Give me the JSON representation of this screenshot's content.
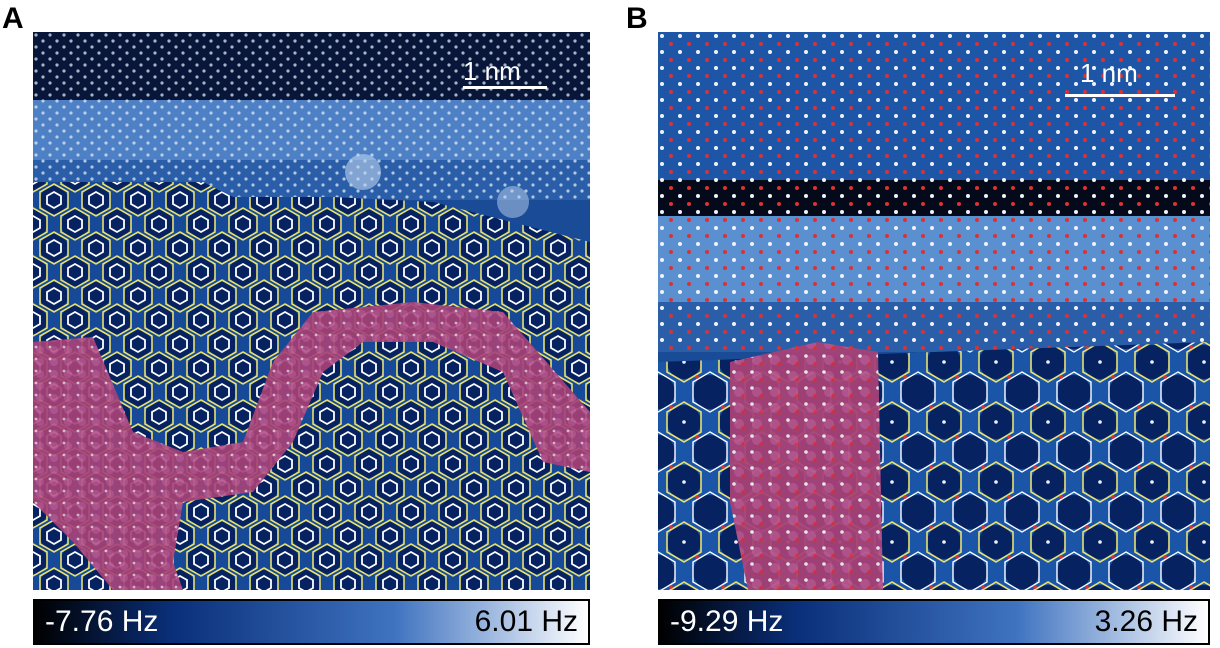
{
  "panels": [
    {
      "label": "A",
      "scale_bar": "1 nm",
      "colorbar": {
        "min": "-7.76 Hz",
        "max": "6.01 Hz",
        "colors": [
          "#000000",
          "#0a2f7a",
          "#3f73c0",
          "#ffffff"
        ]
      }
    },
    {
      "label": "B",
      "scale_bar": "1 nm",
      "colorbar": {
        "min": "-9.29 Hz",
        "max": "3.26 Hz",
        "colors": [
          "#000000",
          "#0a2f7a",
          "#3f73c0",
          "#ffffff"
        ]
      }
    }
  ],
  "colors": {
    "lattice_yellow": "#e8e070",
    "lattice_white": "#ffffff",
    "highlight_pink": "#b0457a",
    "dot_red": "#e03030"
  }
}
